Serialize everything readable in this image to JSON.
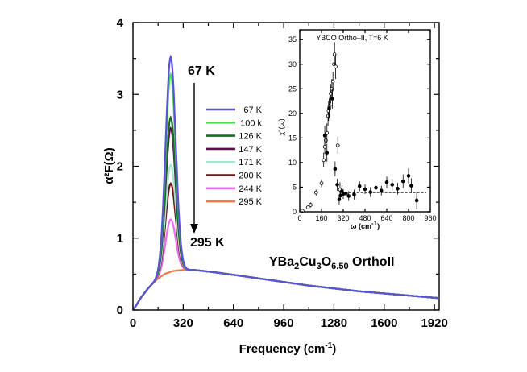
{
  "chart_data": [
    {
      "type": "line",
      "title": "",
      "xlabel": "Frequency (cm",
      "xlabel_sup": "-1",
      "xlabel_close": ")",
      "ylabel": "α²F(Ω)",
      "xlim": [
        0,
        1950
      ],
      "ylim": [
        0,
        4
      ],
      "xticks": [
        0,
        320,
        640,
        960,
        1280,
        1600,
        1920
      ],
      "yticks": [
        0,
        1,
        2,
        3,
        4
      ],
      "peak_center": 240,
      "peak_width": 32,
      "series": [
        {
          "name": "67 K",
          "color": "#5b52d6",
          "peak": 3.52
        },
        {
          "name": "100 k",
          "color": "#4fdc4f",
          "peak": 3.28
        },
        {
          "name": "126 K",
          "color": "#1a6a2a",
          "peak": 2.68
        },
        {
          "name": "147 K",
          "color": "#5c0f4a",
          "peak": 2.53
        },
        {
          "name": "171 K",
          "color": "#a6e6cf",
          "peak": 2.02
        },
        {
          "name": "200 K",
          "color": "#6b1414",
          "peak": 1.76
        },
        {
          "name": "244 K",
          "color": "#ee6aee",
          "peak": 1.26
        },
        {
          "name": "295 K",
          "color": "#f07a50",
          "peak": 0.0
        }
      ],
      "background": {
        "x": [
          0,
          20,
          50,
          100,
          150,
          200,
          250,
          300,
          330,
          400,
          500,
          640,
          800,
          960,
          1120,
          1280,
          1440,
          1600,
          1760,
          1950
        ],
        "y": [
          0,
          0.06,
          0.17,
          0.31,
          0.42,
          0.5,
          0.54,
          0.555,
          0.56,
          0.555,
          0.53,
          0.49,
          0.44,
          0.39,
          0.34,
          0.3,
          0.26,
          0.23,
          0.2,
          0.165
        ]
      },
      "annotations": {
        "top": "67 K",
        "bottom": "295 K",
        "compound": {
          "base1": "YBa",
          "sub1": "2",
          "base2": "Cu",
          "sub2": "3",
          "base3": "O",
          "sub3": "6.50",
          "tail": " OrthoII"
        }
      }
    },
    {
      "type": "scatter",
      "title": "YBCO Ortho–II, T=6 K",
      "xlabel": "ω (cm",
      "xlabel_sup": "-1",
      "xlabel_close": ")",
      "ylabel": "χ''(ω)",
      "xlim": [
        0,
        960
      ],
      "ylim": [
        0,
        37
      ],
      "xticks": [
        0,
        160,
        320,
        480,
        640,
        800,
        960
      ],
      "yticks": [
        0,
        5,
        10,
        15,
        20,
        25,
        30,
        35
      ],
      "dashed_level": 3.9,
      "open_points": [
        {
          "x": 20,
          "y": 0.2,
          "e": 0.4
        },
        {
          "x": 60,
          "y": 0.9,
          "e": 0.4
        },
        {
          "x": 80,
          "y": 1.4,
          "e": 0.5
        },
        {
          "x": 120,
          "y": 3.9,
          "e": 0.6
        },
        {
          "x": 160,
          "y": 5.8,
          "e": 0.8
        },
        {
          "x": 176,
          "y": 10.5,
          "e": 1.5
        },
        {
          "x": 184,
          "y": 13.2,
          "e": 1.5
        },
        {
          "x": 192,
          "y": 14.5,
          "e": 1.8
        },
        {
          "x": 200,
          "y": 16.0,
          "e": 2.0
        },
        {
          "x": 208,
          "y": 19.5,
          "e": 2.0
        },
        {
          "x": 212,
          "y": 20.5,
          "e": 2.0
        },
        {
          "x": 220,
          "y": 21.5,
          "e": 2.0
        },
        {
          "x": 228,
          "y": 24.0,
          "e": 2.0
        },
        {
          "x": 236,
          "y": 25.0,
          "e": 2.0
        },
        {
          "x": 244,
          "y": 26.5,
          "e": 2.0
        },
        {
          "x": 252,
          "y": 30.0,
          "e": 2.5
        },
        {
          "x": 256,
          "y": 32.0,
          "e": 2.5
        },
        {
          "x": 264,
          "y": 29.5,
          "e": 2.5
        },
        {
          "x": 280,
          "y": 13.5,
          "e": 1.8
        },
        {
          "x": 296,
          "y": 4.5,
          "e": 1.5
        }
      ],
      "filled_points": [
        {
          "x": 184,
          "y": 15.5,
          "e": 2.0
        },
        {
          "x": 200,
          "y": 12.0,
          "e": 1.8
        },
        {
          "x": 216,
          "y": 21.0,
          "e": 2.0
        },
        {
          "x": 240,
          "y": 23.0,
          "e": 2.0
        },
        {
          "x": 260,
          "y": 8.7,
          "e": 1.5
        },
        {
          "x": 276,
          "y": 5.5,
          "e": 1.2
        },
        {
          "x": 290,
          "y": 2.5,
          "e": 1.0
        },
        {
          "x": 300,
          "y": 3.3,
          "e": 1.0
        },
        {
          "x": 310,
          "y": 4.2,
          "e": 1.2
        },
        {
          "x": 320,
          "y": 3.6,
          "e": 1.0
        },
        {
          "x": 340,
          "y": 3.7,
          "e": 1.0
        },
        {
          "x": 360,
          "y": 3.2,
          "e": 1.0
        },
        {
          "x": 400,
          "y": 3.5,
          "e": 1.0
        },
        {
          "x": 440,
          "y": 5.2,
          "e": 1.0
        },
        {
          "x": 480,
          "y": 4.6,
          "e": 1.0
        },
        {
          "x": 520,
          "y": 4.0,
          "e": 1.0
        },
        {
          "x": 560,
          "y": 4.9,
          "e": 1.0
        },
        {
          "x": 600,
          "y": 4.3,
          "e": 1.0
        },
        {
          "x": 640,
          "y": 6.0,
          "e": 1.2
        },
        {
          "x": 680,
          "y": 5.5,
          "e": 1.2
        },
        {
          "x": 720,
          "y": 4.7,
          "e": 1.2
        },
        {
          "x": 760,
          "y": 6.2,
          "e": 1.4
        },
        {
          "x": 800,
          "y": 7.3,
          "e": 1.5
        },
        {
          "x": 820,
          "y": 5.3,
          "e": 1.5
        },
        {
          "x": 860,
          "y": 2.3,
          "e": 1.8
        }
      ]
    }
  ]
}
